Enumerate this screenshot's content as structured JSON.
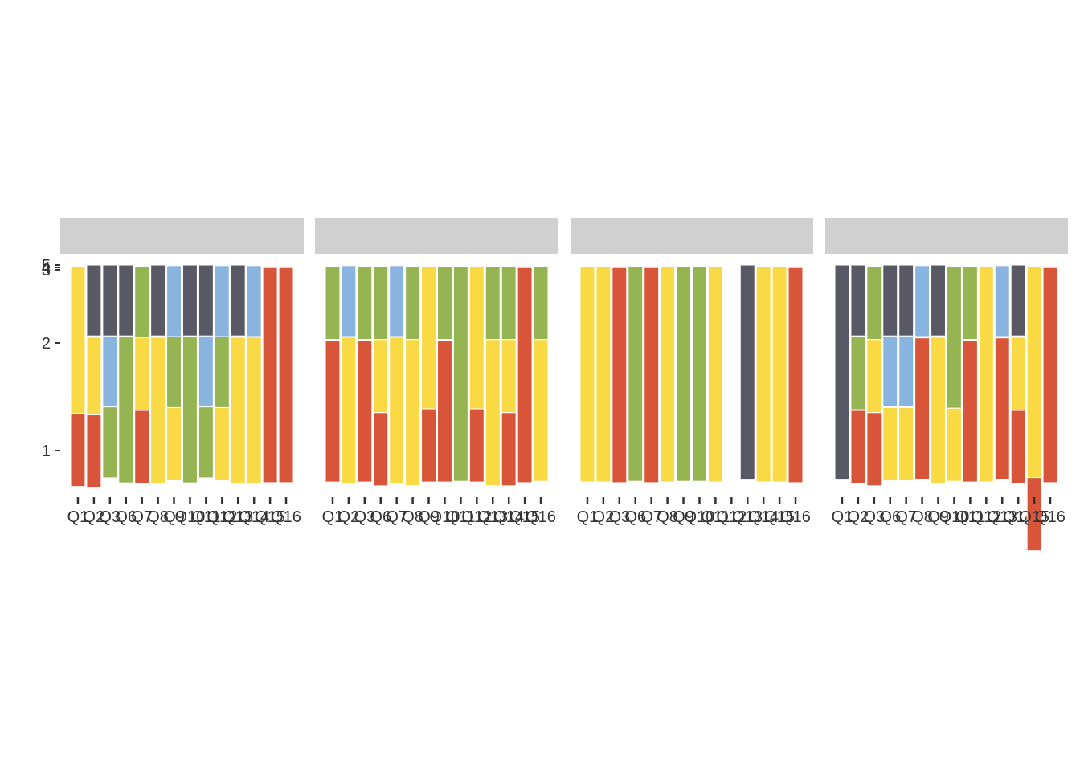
{
  "colors": {
    "level_5": "#595966",
    "level_4": "#8ab4e0",
    "level_3": "#95b552",
    "level_2": "#f9d944",
    "level_1": "#d9553a",
    "background": "#ffffff",
    "strip_bg": "#d0d0d0",
    "strip_text": "#8a8a8a",
    "axis_text": "#333333"
  },
  "chart_data": {
    "type": "bar",
    "subtype": "stacked proportion bars, faceted into 4 panels",
    "x_categories": [
      "Q1",
      "Q2",
      "Q3",
      "Q6",
      "Q7",
      "Q8",
      "Q9",
      "Q10",
      "Q11",
      "Q12",
      "Q13",
      "Q14",
      "Q15",
      "Q16"
    ],
    "y_ticks": [
      "1",
      "2",
      "3",
      "4",
      "5"
    ],
    "levels": [
      "1",
      "2",
      "3",
      "4",
      "5"
    ],
    "grid": false,
    "legend": "none",
    "facets": [
      {
        "strip_label": "",
        "series": [
          {
            "level": "5",
            "values": [
              0,
              0.32,
              0.32,
              0.32,
              0,
              0.32,
              0,
              0.32,
              0.32,
              0,
              0.32,
              0,
              0,
              0
            ]
          },
          {
            "level": "4",
            "values": [
              0,
              0,
              0.32,
              0,
              0,
              0,
              0.32,
              0,
              0.32,
              0.32,
              0,
              0.32,
              0,
              0
            ]
          },
          {
            "level": "3",
            "values": [
              0,
              0,
              0.32,
              0.66,
              0.32,
              0,
              0.32,
              0.66,
              0.32,
              0.32,
              0,
              0,
              0,
              0
            ]
          },
          {
            "level": "2",
            "values": [
              0.66,
              0.35,
              0,
              0,
              0.33,
              0.66,
              0.33,
              0,
              0,
              0.33,
              0.66,
              0.66,
              0,
              0
            ]
          },
          {
            "level": "1",
            "values": [
              0.33,
              0.33,
              0,
              0,
              0.33,
              0,
              0,
              0,
              0,
              0,
              0,
              0,
              0.97,
              0.97
            ]
          }
        ]
      },
      {
        "strip_label": "",
        "series": [
          {
            "level": "5",
            "values": [
              0,
              0,
              0,
              0,
              0,
              0,
              0,
              0,
              0,
              0,
              0,
              0,
              0,
              0
            ]
          },
          {
            "level": "4",
            "values": [
              0,
              0.32,
              0,
              0,
              0.32,
              0,
              0,
              0,
              0,
              0,
              0,
              0,
              0,
              0
            ]
          },
          {
            "level": "3",
            "values": [
              0.33,
              0,
              0.33,
              0.33,
              0,
              0.33,
              0,
              0.33,
              0.97,
              0,
              0.33,
              0.33,
              0,
              0.33
            ]
          },
          {
            "level": "2",
            "values": [
              0,
              0.66,
              0,
              0.33,
              0.66,
              0.66,
              0.64,
              0,
              0,
              0.64,
              0.66,
              0.33,
              0,
              0.64
            ]
          },
          {
            "level": "1",
            "values": [
              0.64,
              0,
              0.64,
              0.33,
              0,
              0,
              0.33,
              0.64,
              0,
              0.33,
              0,
              0.33,
              0.97,
              0
            ]
          }
        ]
      },
      {
        "strip_label": "",
        "series": [
          {
            "level": "5",
            "values": [
              0,
              0,
              0,
              0,
              0,
              0,
              0,
              0,
              0,
              0,
              0.97,
              0,
              0,
              0
            ]
          },
          {
            "level": "4",
            "values": [
              0,
              0,
              0,
              0,
              0,
              0,
              0,
              0,
              0,
              0,
              0,
              0,
              0,
              0
            ]
          },
          {
            "level": "3",
            "values": [
              0,
              0,
              0,
              0.97,
              0,
              0,
              0.97,
              0.97,
              0,
              0,
              0,
              0,
              0,
              0
            ]
          },
          {
            "level": "2",
            "values": [
              0.97,
              0.97,
              0,
              0,
              0,
              0.97,
              0,
              0,
              0.97,
              0,
              0,
              0.97,
              0.97,
              0
            ]
          },
          {
            "level": "1",
            "values": [
              0,
              0,
              0.97,
              0,
              0.97,
              0,
              0,
              0,
              0,
              0,
              0,
              0,
              0,
              0.97
            ]
          }
        ]
      },
      {
        "strip_label": "",
        "series": [
          {
            "level": "5",
            "values": [
              0.97,
              0.32,
              0,
              0.32,
              0.32,
              0,
              0.32,
              0,
              0,
              0,
              0,
              0.32,
              0,
              0
            ]
          },
          {
            "level": "4",
            "values": [
              0,
              0,
              0,
              0.32,
              0.32,
              0.32,
              0,
              0,
              0,
              0,
              0.32,
              0,
              0,
              0
            ]
          },
          {
            "level": "3",
            "values": [
              0,
              0.33,
              0.33,
              0,
              0,
              0,
              0,
              0.64,
              0.33,
              0,
              0,
              0,
              0,
              0
            ]
          },
          {
            "level": "2",
            "values": [
              0,
              0,
              0.33,
              0.33,
              0.33,
              0,
              0.66,
              0.33,
              0,
              0.97,
              0,
              0.33,
              0.95,
              0
            ]
          },
          {
            "level": "1",
            "values": [
              0,
              0.33,
              0.33,
              0,
              0,
              0.64,
              0,
              0,
              0.64,
              0,
              0.64,
              0.33,
              0.33,
              0.97
            ]
          }
        ]
      }
    ]
  }
}
